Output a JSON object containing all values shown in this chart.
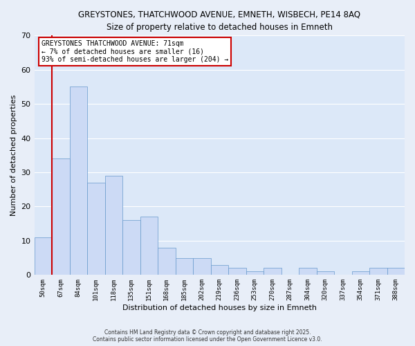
{
  "title_line1": "GREYSTONES, THATCHWOOD AVENUE, EMNETH, WISBECH, PE14 8AQ",
  "title_line2": "Size of property relative to detached houses in Emneth",
  "xlabel": "Distribution of detached houses by size in Emneth",
  "ylabel": "Number of detached properties",
  "bar_labels": [
    "50sqm",
    "67sqm",
    "84sqm",
    "101sqm",
    "118sqm",
    "135sqm",
    "151sqm",
    "168sqm",
    "185sqm",
    "202sqm",
    "219sqm",
    "236sqm",
    "253sqm",
    "270sqm",
    "287sqm",
    "304sqm",
    "320sqm",
    "337sqm",
    "354sqm",
    "371sqm",
    "388sqm"
  ],
  "bar_values": [
    11,
    34,
    55,
    27,
    29,
    16,
    17,
    8,
    5,
    5,
    3,
    2,
    1,
    2,
    0,
    2,
    1,
    0,
    1,
    2,
    2
  ],
  "bar_color": "#ccdaf5",
  "bar_edge_color": "#6699cc",
  "vline_color": "#cc0000",
  "ylim": [
    0,
    70
  ],
  "yticks": [
    0,
    10,
    20,
    30,
    40,
    50,
    60,
    70
  ],
  "annotation_line1": "GREYSTONES THATCHWOOD AVENUE: 71sqm",
  "annotation_line2": "← 7% of detached houses are smaller (16)",
  "annotation_line3": "93% of semi-detached houses are larger (204) →",
  "footer_line1": "Contains HM Land Registry data © Crown copyright and database right 2025.",
  "footer_line2": "Contains public sector information licensed under the Open Government Licence v3.0.",
  "background_color": "#e8eef8",
  "plot_background_color": "#dce8f8",
  "grid_color": "#ffffff",
  "ann_box_color": "#ffffff",
  "ann_edge_color": "#cc0000"
}
